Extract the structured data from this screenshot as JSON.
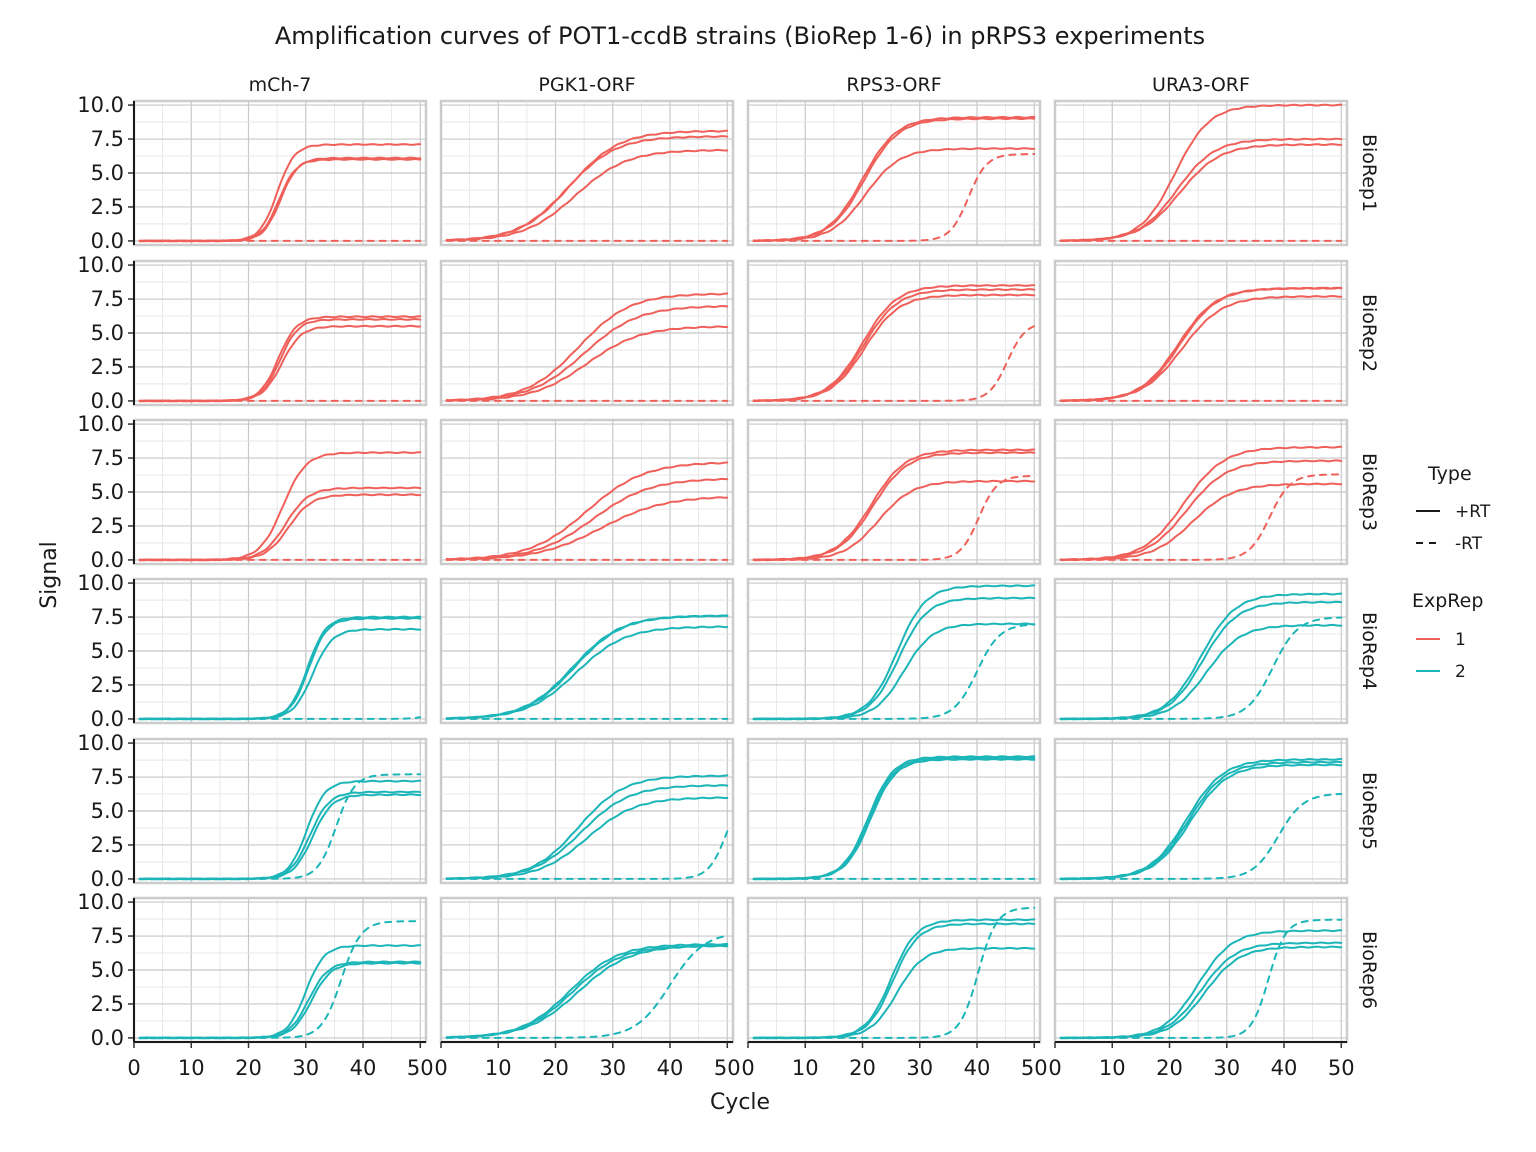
{
  "chart_data": {
    "type": "line",
    "title": "Amplification curves of POT1-ccdB strains (BioRep 1-6) in pRPS3 experiments",
    "xlabel": "Cycle",
    "ylabel": "Signal",
    "xlim": [
      0,
      51
    ],
    "ylim": [
      -0.3,
      10.3
    ],
    "x_ticks": [
      "0",
      "10",
      "20",
      "30",
      "40",
      "50"
    ],
    "y_ticks": [
      "0.0",
      "2.5",
      "5.0",
      "7.5",
      "10.0"
    ],
    "x_tick_values": [
      0,
      10,
      20,
      30,
      40,
      50
    ],
    "y_tick_values": [
      0,
      2.5,
      5,
      7.5,
      10
    ],
    "grid": true,
    "columns": [
      "mCh-7",
      "PGK1-ORF",
      "RPS3-ORF",
      "URA3-ORF"
    ],
    "rows": [
      "BioRep1",
      "BioRep2",
      "BioRep3",
      "BioRep4",
      "BioRep5",
      "BioRep6"
    ],
    "legend_position": "right",
    "legends": {
      "type": {
        "title": "Type",
        "entries": [
          "+RT",
          "-RT"
        ]
      },
      "exprep": {
        "title": "ExpRep",
        "entries": [
          "1",
          "2"
        ]
      }
    },
    "colors": {
      "1": "#F0605A",
      "2": "#1CB5B8"
    },
    "row_exprep": [
      "1",
      "1",
      "1",
      "2",
      "2",
      "2"
    ],
    "curve_model": "sigmoid: signal = plateau / (1 + exp(-(cycle - midpoint) / slope))",
    "panels": [
      [
        {
          "plus": [
            [
              25,
              1.5,
              7.1
            ],
            [
              25.3,
              1.5,
              6.0
            ],
            [
              25.6,
              1.5,
              6.1
            ]
          ],
          "minus": [
            [
              0,
              1,
              0
            ]
          ]
        },
        {
          "plus": [
            [
              22.5,
              4.3,
              8.1
            ],
            [
              22,
              4.3,
              7.7
            ],
            [
              23.5,
              4.5,
              6.7
            ]
          ],
          "minus": [
            [
              0,
              1,
              0
            ]
          ]
        },
        {
          "plus": [
            [
              20,
              3,
              9.1
            ],
            [
              20.3,
              3,
              9.0
            ],
            [
              20.5,
              3,
              6.8
            ]
          ],
          "minus": [
            [
              38.5,
              1.6,
              6.4
            ]
          ]
        },
        {
          "plus": [
            [
              21,
              3,
              10.0
            ],
            [
              21.3,
              3.3,
              7.5
            ],
            [
              21.8,
              3.5,
              7.1
            ]
          ],
          "minus": [
            [
              0,
              1,
              0
            ]
          ]
        }
      ],
      [
        {
          "plus": [
            [
              25.2,
              1.6,
              6.2
            ],
            [
              25.5,
              1.6,
              6.0
            ],
            [
              25.8,
              1.7,
              5.5
            ]
          ],
          "minus": [
            [
              0,
              1,
              0
            ]
          ]
        },
        {
          "plus": [
            [
              24,
              4.5,
              7.9
            ],
            [
              25,
              4.7,
              7.0
            ],
            [
              25.5,
              4.7,
              5.5
            ]
          ],
          "minus": [
            [
              0,
              1,
              0
            ]
          ]
        },
        {
          "plus": [
            [
              20,
              3,
              8.5
            ],
            [
              20.2,
              3,
              8.2
            ],
            [
              20.4,
              3,
              7.8
            ]
          ],
          "minus": [
            [
              45.3,
              1.6,
              5.8
            ]
          ]
        },
        {
          "plus": [
            [
              21.5,
              3.3,
              8.3
            ],
            [
              21.8,
              3.3,
              8.3
            ],
            [
              22.2,
              3.5,
              7.7
            ]
          ],
          "minus": [
            [
              0,
              1,
              0
            ]
          ]
        }
      ],
      [
        {
          "plus": [
            [
              26,
              2,
              7.9
            ],
            [
              26.5,
              2,
              5.3
            ],
            [
              27,
              2,
              4.8
            ]
          ],
          "minus": [
            [
              0,
              1,
              0
            ]
          ]
        },
        {
          "plus": [
            [
              25.5,
              5,
              7.2
            ],
            [
              26.5,
              5,
              6.0
            ],
            [
              28,
              5.5,
              4.7
            ]
          ],
          "minus": [
            [
              0,
              1,
              0
            ]
          ]
        },
        {
          "plus": [
            [
              21.5,
              3,
              8.1
            ],
            [
              21.8,
              3,
              7.9
            ],
            [
              22.8,
              3,
              5.8
            ]
          ],
          "minus": [
            [
              40.3,
              1.6,
              6.2
            ]
          ]
        },
        {
          "plus": [
            [
              22.5,
              3.5,
              8.3
            ],
            [
              23,
              3.5,
              7.3
            ],
            [
              24,
              3.5,
              5.6
            ]
          ],
          "minus": [
            [
              37.5,
              1.8,
              6.3
            ]
          ]
        }
      ],
      [
        {
          "plus": [
            [
              30.3,
              1.6,
              7.5
            ],
            [
              30.5,
              1.6,
              7.4
            ],
            [
              31.2,
              1.7,
              6.6
            ]
          ],
          "minus": [
            [
              54,
              1.5,
              2.0
            ]
          ]
        },
        {
          "plus": [
            [
              23,
              4.2,
              7.6
            ],
            [
              23.3,
              4.2,
              7.6
            ],
            [
              23.6,
              4.3,
              6.8
            ]
          ],
          "minus": [
            [
              0,
              1,
              0
            ]
          ]
        },
        {
          "plus": [
            [
              26,
              2.5,
              9.8
            ],
            [
              26.3,
              2.5,
              8.9
            ],
            [
              27.2,
              2.5,
              7.0
            ]
          ],
          "minus": [
            [
              40,
              2,
              7.0
            ]
          ]
        },
        {
          "plus": [
            [
              25.5,
              3,
              9.2
            ],
            [
              25.8,
              3,
              8.6
            ],
            [
              26.5,
              3,
              6.9
            ]
          ],
          "minus": [
            [
              38,
              2.2,
              7.5
            ]
          ]
        }
      ],
      [
        {
          "plus": [
            [
              30.2,
              1.6,
              7.2
            ],
            [
              30.7,
              1.7,
              6.4
            ],
            [
              31.2,
              1.7,
              6.2
            ]
          ],
          "minus": [
            [
              35.3,
              1.6,
              7.7
            ]
          ]
        },
        {
          "plus": [
            [
              24,
              4,
              7.6
            ],
            [
              24.5,
              4.2,
              6.9
            ],
            [
              25.5,
              4.2,
              6.0
            ]
          ],
          "minus": [
            [
              50,
              1.6,
              7.0
            ]
          ]
        },
        {
          "plus": [
            [
              21,
              2.2,
              9.0
            ],
            [
              21.2,
              2.2,
              8.9
            ],
            [
              21.4,
              2.2,
              8.8
            ]
          ],
          "minus": [
            [
              0,
              1,
              0
            ]
          ]
        },
        {
          "plus": [
            [
              23,
              3.2,
              8.8
            ],
            [
              23.3,
              3.2,
              8.6
            ],
            [
              23.6,
              3.2,
              8.4
            ]
          ],
          "minus": [
            [
              39,
              2.2,
              6.3
            ]
          ]
        }
      ],
      [
        {
          "plus": [
            [
              30,
              1.6,
              6.8
            ],
            [
              30.5,
              1.7,
              5.6
            ],
            [
              31,
              1.7,
              5.5
            ]
          ],
          "minus": [
            [
              36.2,
              1.7,
              8.6
            ]
          ]
        },
        {
          "plus": [
            [
              22.5,
              4.2,
              6.9
            ],
            [
              23,
              4.3,
              6.8
            ],
            [
              24,
              4.5,
              6.8
            ]
          ],
          "minus": [
            [
              40,
              3,
              7.8
            ]
          ]
        },
        {
          "plus": [
            [
              25,
              2.2,
              8.7
            ],
            [
              25.3,
              2.2,
              8.4
            ],
            [
              26,
              2.3,
              6.6
            ]
          ],
          "minus": [
            [
              40.2,
              1.6,
              9.6
            ]
          ]
        },
        {
          "plus": [
            [
              25,
              3,
              7.9
            ],
            [
              25.5,
              3,
              7.0
            ],
            [
              26.2,
              3,
              6.7
            ]
          ],
          "minus": [
            [
              37.3,
              1.5,
              8.7
            ]
          ]
        }
      ]
    ]
  }
}
